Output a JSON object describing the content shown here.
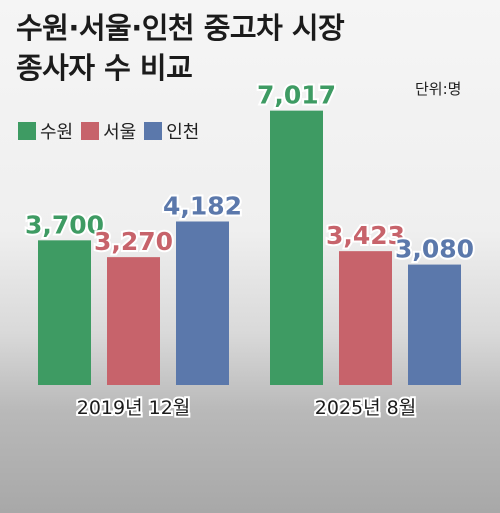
{
  "title_line1": "수원·서울·인천 중고차 시장",
  "title_line2": "종사자 수 비교",
  "unit": "단위:명",
  "colors": {
    "suwon": "#3e9b63",
    "seoul": "#c7636b",
    "incheon": "#5b78ab"
  },
  "chart_data": {
    "type": "bar",
    "categories": [
      "2019년 12월",
      "2025년 8월"
    ],
    "series": [
      {
        "name": "수원",
        "values": [
          3700,
          7017
        ],
        "labels": [
          "3,700",
          "7,017"
        ]
      },
      {
        "name": "서울",
        "values": [
          3270,
          3423
        ],
        "labels": [
          "3,270",
          "3,423"
        ]
      },
      {
        "name": "인천",
        "values": [
          4182,
          3080
        ],
        "labels": [
          "4,182",
          "3,080"
        ]
      }
    ],
    "legend": "top-left",
    "grid": false
  }
}
